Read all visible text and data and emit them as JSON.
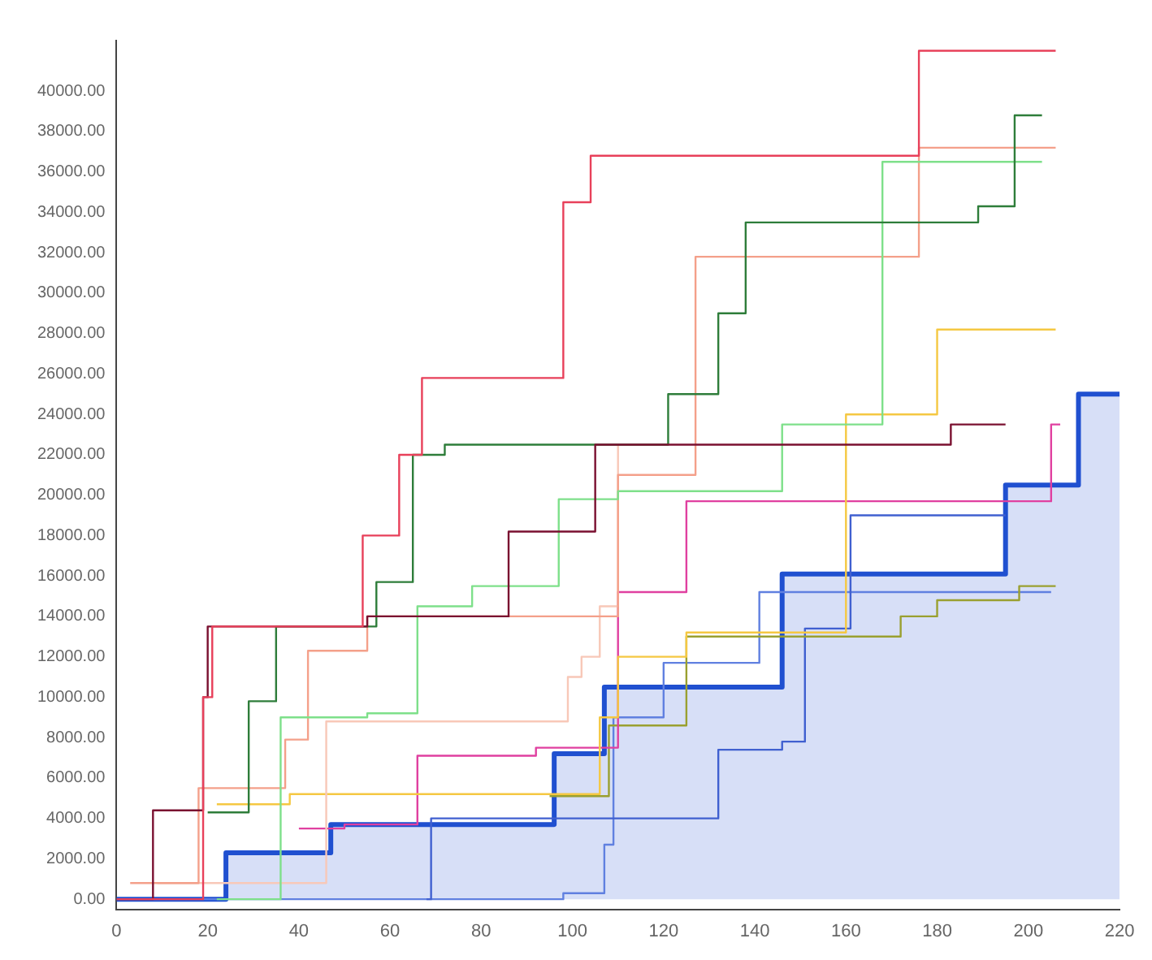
{
  "chart_data": {
    "type": "step",
    "xlim": [
      0,
      220
    ],
    "xticks": [
      0,
      20,
      40,
      60,
      80,
      100,
      120,
      140,
      160,
      180,
      200,
      220
    ],
    "ylim": [
      -500,
      42500
    ],
    "yticks": [
      {
        "value": 0,
        "label": "0.00"
      },
      {
        "value": 2000,
        "label": "2000.00"
      },
      {
        "value": 4000,
        "label": "4000.00"
      },
      {
        "value": 6000,
        "label": "6000.00"
      },
      {
        "value": 8000,
        "label": "8000.00"
      },
      {
        "value": 10000,
        "label": "10000.00"
      },
      {
        "value": 12000,
        "label": "12000.00"
      },
      {
        "value": 14000,
        "label": "14000.00"
      },
      {
        "value": 16000,
        "label": "16000.00"
      },
      {
        "value": 18000,
        "label": "18000.00"
      },
      {
        "value": 20000,
        "label": "20000.00"
      },
      {
        "value": 22000,
        "label": "22000.00"
      },
      {
        "value": 24000,
        "label": "24000.00"
      },
      {
        "value": 26000,
        "label": "26000.00"
      },
      {
        "value": 28000,
        "label": "28000.00"
      },
      {
        "value": 30000,
        "label": "30000.00"
      },
      {
        "value": 32000,
        "label": "32000.00"
      },
      {
        "value": 34000,
        "label": "34000.00"
      },
      {
        "value": 36000,
        "label": "36000.00"
      },
      {
        "value": 38000,
        "label": "38000.00"
      },
      {
        "value": 40000,
        "label": "40000.00"
      }
    ],
    "grid": false,
    "legend": false,
    "marker": "none",
    "series": [
      {
        "type": "area",
        "color": "#2050d0",
        "x": [
          0,
          24,
          47,
          96,
          107,
          146,
          195,
          211,
          220
        ],
        "values": [
          0,
          2300,
          3700,
          7200,
          10500,
          16100,
          20500,
          25000,
          25000
        ]
      },
      {
        "color": "#e8405a",
        "x": [
          0,
          19,
          21,
          54,
          62,
          67,
          98,
          104,
          176,
          206
        ],
        "values": [
          0,
          10000,
          13500,
          18000,
          22000,
          25800,
          34500,
          36800,
          42000,
          42000
        ]
      },
      {
        "color": "#7a1030",
        "x": [
          0,
          8,
          19,
          20,
          55,
          86,
          105,
          183,
          195
        ],
        "values": [
          0,
          4400,
          10000,
          13500,
          14000,
          18200,
          22500,
          23500,
          23500
        ]
      },
      {
        "color": "#2e7d3a",
        "x": [
          20,
          29,
          35,
          57,
          65,
          72,
          121,
          132,
          138,
          189,
          197,
          203
        ],
        "values": [
          4300,
          9800,
          13500,
          15700,
          22000,
          22500,
          25000,
          29000,
          33500,
          34300,
          38800,
          38800
        ]
      },
      {
        "color": "#7ee08a",
        "x": [
          22,
          36,
          55,
          66,
          78,
          97,
          110,
          146,
          168,
          203
        ],
        "values": [
          0,
          9000,
          9200,
          14500,
          15500,
          19800,
          20200,
          23500,
          36500,
          36500
        ]
      },
      {
        "color": "#f4a08a",
        "x": [
          3,
          18,
          37,
          42,
          55,
          110,
          127,
          176,
          206
        ],
        "values": [
          800,
          5500,
          7900,
          12300,
          14000,
          21000,
          31800,
          37200,
          37200
        ]
      },
      {
        "color": "#f8c8b8",
        "x": [
          9,
          46,
          99,
          102,
          106,
          110
        ],
        "values": [
          800,
          8800,
          11000,
          12000,
          14500,
          22500
        ]
      },
      {
        "color": "#f5c842",
        "x": [
          22,
          38,
          100,
          106,
          110,
          125,
          160,
          180,
          206
        ],
        "values": [
          4700,
          5200,
          5200,
          9000,
          12000,
          13200,
          24000,
          28200,
          28200
        ]
      },
      {
        "color": "#e040a0",
        "x": [
          40,
          50,
          66,
          92,
          110,
          125,
          205,
          207
        ],
        "values": [
          3500,
          3700,
          7100,
          7500,
          15200,
          19700,
          23500,
          23500
        ]
      },
      {
        "color": "#9aa030",
        "x": [
          95,
          108,
          125,
          172,
          180,
          198,
          206
        ],
        "values": [
          5100,
          8600,
          13000,
          14000,
          14800,
          15500,
          15500
        ]
      },
      {
        "color": "#4060d0",
        "x": [
          68,
          69,
          132,
          146,
          151,
          161,
          195
        ],
        "values": [
          0,
          4000,
          7400,
          7800,
          13400,
          19000,
          19000
        ]
      },
      {
        "color": "#6080e0",
        "x": [
          0,
          98,
          107,
          109,
          120,
          141,
          205
        ],
        "values": [
          0,
          300,
          2700,
          9000,
          11700,
          15200,
          15200
        ]
      }
    ]
  }
}
